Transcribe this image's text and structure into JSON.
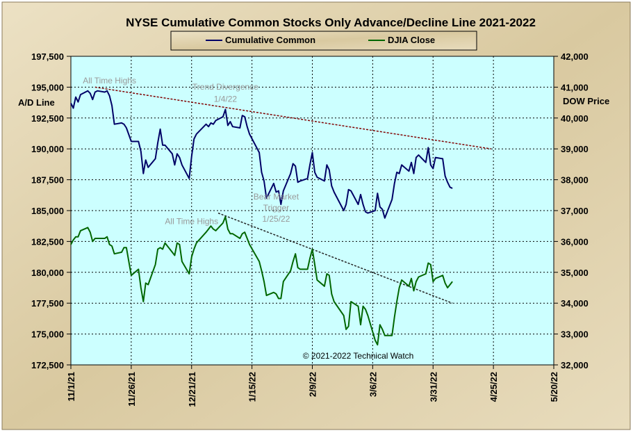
{
  "chart_data": {
    "type": "line",
    "title": "NYSE Cumulative  Common Stocks Only Advance/Decline  Line 2021-2022",
    "ylabel_left": "A/D Line",
    "ylabel_right": "DOW  Price",
    "xlim": [
      "2021-11-01",
      "2022-05-20"
    ],
    "ylim_left": [
      172500,
      197500
    ],
    "ylim_right": [
      32000,
      42000
    ],
    "x_ticks": [
      "11/1/21",
      "11/26/21",
      "12/21/21",
      "1/15/22",
      "2/9/22",
      "3/6/22",
      "3/31/22",
      "4/25/22",
      "5/20/22"
    ],
    "y_ticks_left": [
      "172,500",
      "175,000",
      "177,500",
      "180,000",
      "182,500",
      "185,000",
      "187,500",
      "190,000",
      "192,500",
      "195,000",
      "197,500"
    ],
    "y_ticks_right": [
      "32,000",
      "33,000",
      "34,000",
      "35,000",
      "36,000",
      "37,000",
      "38,000",
      "39,000",
      "40,000",
      "41,000",
      "42,000"
    ],
    "grid": true,
    "legend_position": "top-center",
    "series": [
      {
        "name": "Cumulative Common",
        "axis": "left",
        "color": "#000066",
        "points": [
          [
            "2021-11-01",
            193700
          ],
          [
            "2021-11-02",
            193300
          ],
          [
            "2021-11-03",
            194200
          ],
          [
            "2021-11-04",
            193800
          ],
          [
            "2021-11-05",
            194400
          ],
          [
            "2021-11-08",
            194700
          ],
          [
            "2021-11-09",
            194500
          ],
          [
            "2021-11-10",
            194000
          ],
          [
            "2021-11-11",
            194600
          ],
          [
            "2021-11-12",
            194700
          ],
          [
            "2021-11-15",
            194600
          ],
          [
            "2021-11-16",
            194700
          ],
          [
            "2021-11-17",
            194300
          ],
          [
            "2021-11-18",
            193500
          ],
          [
            "2021-11-19",
            192000
          ],
          [
            "2021-11-22",
            192100
          ],
          [
            "2021-11-23",
            192000
          ],
          [
            "2021-11-24",
            191700
          ],
          [
            "2021-11-26",
            190600
          ],
          [
            "2021-11-29",
            190600
          ],
          [
            "2021-11-30",
            189800
          ],
          [
            "2021-12-01",
            188000
          ],
          [
            "2021-12-02",
            189100
          ],
          [
            "2021-12-03",
            188500
          ],
          [
            "2021-12-06",
            189200
          ],
          [
            "2021-12-07",
            190500
          ],
          [
            "2021-12-08",
            191600
          ],
          [
            "2021-12-09",
            190300
          ],
          [
            "2021-12-10",
            190300
          ],
          [
            "2021-12-13",
            189600
          ],
          [
            "2021-12-14",
            188700
          ],
          [
            "2021-12-15",
            189600
          ],
          [
            "2021-12-16",
            189300
          ],
          [
            "2021-12-17",
            188700
          ],
          [
            "2021-12-20",
            187600
          ],
          [
            "2021-12-21",
            189400
          ],
          [
            "2021-12-22",
            190800
          ],
          [
            "2021-12-23",
            191200
          ],
          [
            "2021-12-27",
            192000
          ],
          [
            "2021-12-28",
            191800
          ],
          [
            "2021-12-29",
            192100
          ],
          [
            "2021-12-30",
            192000
          ],
          [
            "2021-12-31",
            192300
          ],
          [
            "2022-01-03",
            192600
          ],
          [
            "2022-01-04",
            193200
          ],
          [
            "2022-01-05",
            191900
          ],
          [
            "2022-01-06",
            192200
          ],
          [
            "2022-01-07",
            191800
          ],
          [
            "2022-01-10",
            191700
          ],
          [
            "2022-01-11",
            192700
          ],
          [
            "2022-01-12",
            192600
          ],
          [
            "2022-01-13",
            191800
          ],
          [
            "2022-01-14",
            191200
          ],
          [
            "2022-01-18",
            189700
          ],
          [
            "2022-01-19",
            188100
          ],
          [
            "2022-01-20",
            187400
          ],
          [
            "2022-01-21",
            186000
          ],
          [
            "2022-01-24",
            187200
          ],
          [
            "2022-01-25",
            186500
          ],
          [
            "2022-01-26",
            186600
          ],
          [
            "2022-01-27",
            185500
          ],
          [
            "2022-01-28",
            186600
          ],
          [
            "2022-01-31",
            188000
          ],
          [
            "2022-02-01",
            188800
          ],
          [
            "2022-02-02",
            188600
          ],
          [
            "2022-02-03",
            187300
          ],
          [
            "2022-02-04",
            187400
          ],
          [
            "2022-02-07",
            187600
          ],
          [
            "2022-02-08",
            188700
          ],
          [
            "2022-02-09",
            189700
          ],
          [
            "2022-02-10",
            188100
          ],
          [
            "2022-02-11",
            187700
          ],
          [
            "2022-02-14",
            187400
          ],
          [
            "2022-02-15",
            188700
          ],
          [
            "2022-02-16",
            188300
          ],
          [
            "2022-02-17",
            187000
          ],
          [
            "2022-02-18",
            186500
          ],
          [
            "2022-02-22",
            185000
          ],
          [
            "2022-02-23",
            185500
          ],
          [
            "2022-02-24",
            186700
          ],
          [
            "2022-02-25",
            186600
          ],
          [
            "2022-02-28",
            185500
          ],
          [
            "2022-03-01",
            186300
          ],
          [
            "2022-03-02",
            185500
          ],
          [
            "2022-03-03",
            184900
          ],
          [
            "2022-03-04",
            184800
          ],
          [
            "2022-03-07",
            185000
          ],
          [
            "2022-03-08",
            186400
          ],
          [
            "2022-03-09",
            185300
          ],
          [
            "2022-03-10",
            185100
          ],
          [
            "2022-03-11",
            184400
          ],
          [
            "2022-03-14",
            185900
          ],
          [
            "2022-03-15",
            187200
          ],
          [
            "2022-03-16",
            188100
          ],
          [
            "2022-03-17",
            188000
          ],
          [
            "2022-03-18",
            188700
          ],
          [
            "2022-03-21",
            188200
          ],
          [
            "2022-03-22",
            188900
          ],
          [
            "2022-03-23",
            188000
          ],
          [
            "2022-03-24",
            189300
          ],
          [
            "2022-03-25",
            189500
          ],
          [
            "2022-03-28",
            188900
          ],
          [
            "2022-03-29",
            190100
          ],
          [
            "2022-03-30",
            188700
          ],
          [
            "2022-03-31",
            188400
          ],
          [
            "2022-04-01",
            189300
          ],
          [
            "2022-04-04",
            189200
          ],
          [
            "2022-04-05",
            187800
          ],
          [
            "2022-04-06",
            187300
          ],
          [
            "2022-04-07",
            186900
          ],
          [
            "2022-04-08",
            186800
          ]
        ]
      },
      {
        "name": "DJIA Close",
        "axis": "right",
        "color": "#006600",
        "points": [
          [
            "2021-11-01",
            35900
          ],
          [
            "2021-11-02",
            36050
          ],
          [
            "2021-11-03",
            36150
          ],
          [
            "2021-11-04",
            36150
          ],
          [
            "2021-11-05",
            36350
          ],
          [
            "2021-11-08",
            36450
          ],
          [
            "2021-11-09",
            36300
          ],
          [
            "2021-11-10",
            36000
          ],
          [
            "2021-11-11",
            36100
          ],
          [
            "2021-11-12",
            36100
          ],
          [
            "2021-11-15",
            36100
          ],
          [
            "2021-11-16",
            36150
          ],
          [
            "2021-11-17",
            35900
          ],
          [
            "2021-11-18",
            35850
          ],
          [
            "2021-11-19",
            35600
          ],
          [
            "2021-11-22",
            35650
          ],
          [
            "2021-11-23",
            35800
          ],
          [
            "2021-11-24",
            35800
          ],
          [
            "2021-11-26",
            34900
          ],
          [
            "2021-11-29",
            35100
          ],
          [
            "2021-11-30",
            34500
          ],
          [
            "2021-12-01",
            34050
          ],
          [
            "2021-12-02",
            34650
          ],
          [
            "2021-12-03",
            34600
          ],
          [
            "2021-12-06",
            35250
          ],
          [
            "2021-12-07",
            35750
          ],
          [
            "2021-12-08",
            35800
          ],
          [
            "2021-12-09",
            35750
          ],
          [
            "2021-12-10",
            35950
          ],
          [
            "2021-12-13",
            35650
          ],
          [
            "2021-12-14",
            35550
          ],
          [
            "2021-12-15",
            35950
          ],
          [
            "2021-12-16",
            35900
          ],
          [
            "2021-12-17",
            35350
          ],
          [
            "2021-12-20",
            34950
          ],
          [
            "2021-12-21",
            35500
          ],
          [
            "2021-12-22",
            35750
          ],
          [
            "2021-12-23",
            35950
          ],
          [
            "2021-12-27",
            36300
          ],
          [
            "2021-12-28",
            36400
          ],
          [
            "2021-12-29",
            36500
          ],
          [
            "2021-12-30",
            36400
          ],
          [
            "2021-12-31",
            36350
          ],
          [
            "2022-01-03",
            36600
          ],
          [
            "2022-01-04",
            36800
          ],
          [
            "2022-01-05",
            36400
          ],
          [
            "2022-01-06",
            36250
          ],
          [
            "2022-01-07",
            36250
          ],
          [
            "2022-01-10",
            36100
          ],
          [
            "2022-01-11",
            36250
          ],
          [
            "2022-01-12",
            36300
          ],
          [
            "2022-01-13",
            36100
          ],
          [
            "2022-01-14",
            35900
          ],
          [
            "2022-01-18",
            35350
          ],
          [
            "2022-01-19",
            35050
          ],
          [
            "2022-01-20",
            34700
          ],
          [
            "2022-01-21",
            34250
          ],
          [
            "2022-01-24",
            34350
          ],
          [
            "2022-01-25",
            34300
          ],
          [
            "2022-01-26",
            34150
          ],
          [
            "2022-01-27",
            34150
          ],
          [
            "2022-01-28",
            34700
          ],
          [
            "2022-01-31",
            35050
          ],
          [
            "2022-02-01",
            35350
          ],
          [
            "2022-02-02",
            35600
          ],
          [
            "2022-02-03",
            35150
          ],
          [
            "2022-02-04",
            35100
          ],
          [
            "2022-02-07",
            35100
          ],
          [
            "2022-02-08",
            35450
          ],
          [
            "2022-02-09",
            35750
          ],
          [
            "2022-02-10",
            35250
          ],
          [
            "2022-02-11",
            34750
          ],
          [
            "2022-02-14",
            34550
          ],
          [
            "2022-02-15",
            34950
          ],
          [
            "2022-02-16",
            34900
          ],
          [
            "2022-02-17",
            34300
          ],
          [
            "2022-02-18",
            34050
          ],
          [
            "2022-02-22",
            33600
          ],
          [
            "2022-02-23",
            33150
          ],
          [
            "2022-02-24",
            33250
          ],
          [
            "2022-02-25",
            34050
          ],
          [
            "2022-02-28",
            33900
          ],
          [
            "2022-03-01",
            33300
          ],
          [
            "2022-03-02",
            33900
          ],
          [
            "2022-03-03",
            33800
          ],
          [
            "2022-03-04",
            33600
          ],
          [
            "2022-03-07",
            32800
          ],
          [
            "2022-03-08",
            32650
          ],
          [
            "2022-03-09",
            33300
          ],
          [
            "2022-03-10",
            33150
          ],
          [
            "2022-03-11",
            32950
          ],
          [
            "2022-03-14",
            32950
          ],
          [
            "2022-03-15",
            33550
          ],
          [
            "2022-03-16",
            34050
          ],
          [
            "2022-03-17",
            34500
          ],
          [
            "2022-03-18",
            34750
          ],
          [
            "2022-03-21",
            34550
          ],
          [
            "2022-03-22",
            34800
          ],
          [
            "2022-03-23",
            34400
          ],
          [
            "2022-03-24",
            34700
          ],
          [
            "2022-03-25",
            34850
          ],
          [
            "2022-03-28",
            34950
          ],
          [
            "2022-03-29",
            35300
          ],
          [
            "2022-03-30",
            35250
          ],
          [
            "2022-03-31",
            34700
          ],
          [
            "2022-04-01",
            34800
          ],
          [
            "2022-04-04",
            34900
          ],
          [
            "2022-04-05",
            34650
          ],
          [
            "2022-04-06",
            34500
          ],
          [
            "2022-04-07",
            34600
          ],
          [
            "2022-04-08",
            34700
          ]
        ]
      }
    ],
    "trendlines": [
      {
        "axis": "left",
        "color": "#800000",
        "from": [
          "2021-11-11",
          195000
        ],
        "to": [
          "2022-04-24",
          190000
        ]
      },
      {
        "axis": "right",
        "color": "#222222",
        "from": [
          "2022-01-01",
          36920
        ],
        "to": [
          "2022-04-08",
          34000
        ]
      }
    ],
    "annotations": [
      {
        "text": "All Time Highs",
        "x": "2021-11-17",
        "y": 195300,
        "axis": "left"
      },
      {
        "text": "Trend  Divergence",
        "x": "2022-01-04",
        "y": 194800,
        "axis": "left"
      },
      {
        "text": "1/4/22",
        "x": "2022-01-04",
        "y": 193800,
        "axis": "left"
      },
      {
        "text": "Bear Market",
        "x": "2022-01-25",
        "y": 185900,
        "axis": "left"
      },
      {
        "text": "Trigger",
        "x": "2022-01-25",
        "y": 185000,
        "axis": "left"
      },
      {
        "text": "1/25/22",
        "x": "2022-01-25",
        "y": 184100,
        "axis": "left"
      },
      {
        "text": "All Time Highs",
        "x": "2021-12-21",
        "y": 183900,
        "axis": "left"
      },
      {
        "text": "© 2021-2022  Technical Watch",
        "x": "2022-02-28",
        "y": 173000,
        "axis": "left"
      }
    ]
  }
}
